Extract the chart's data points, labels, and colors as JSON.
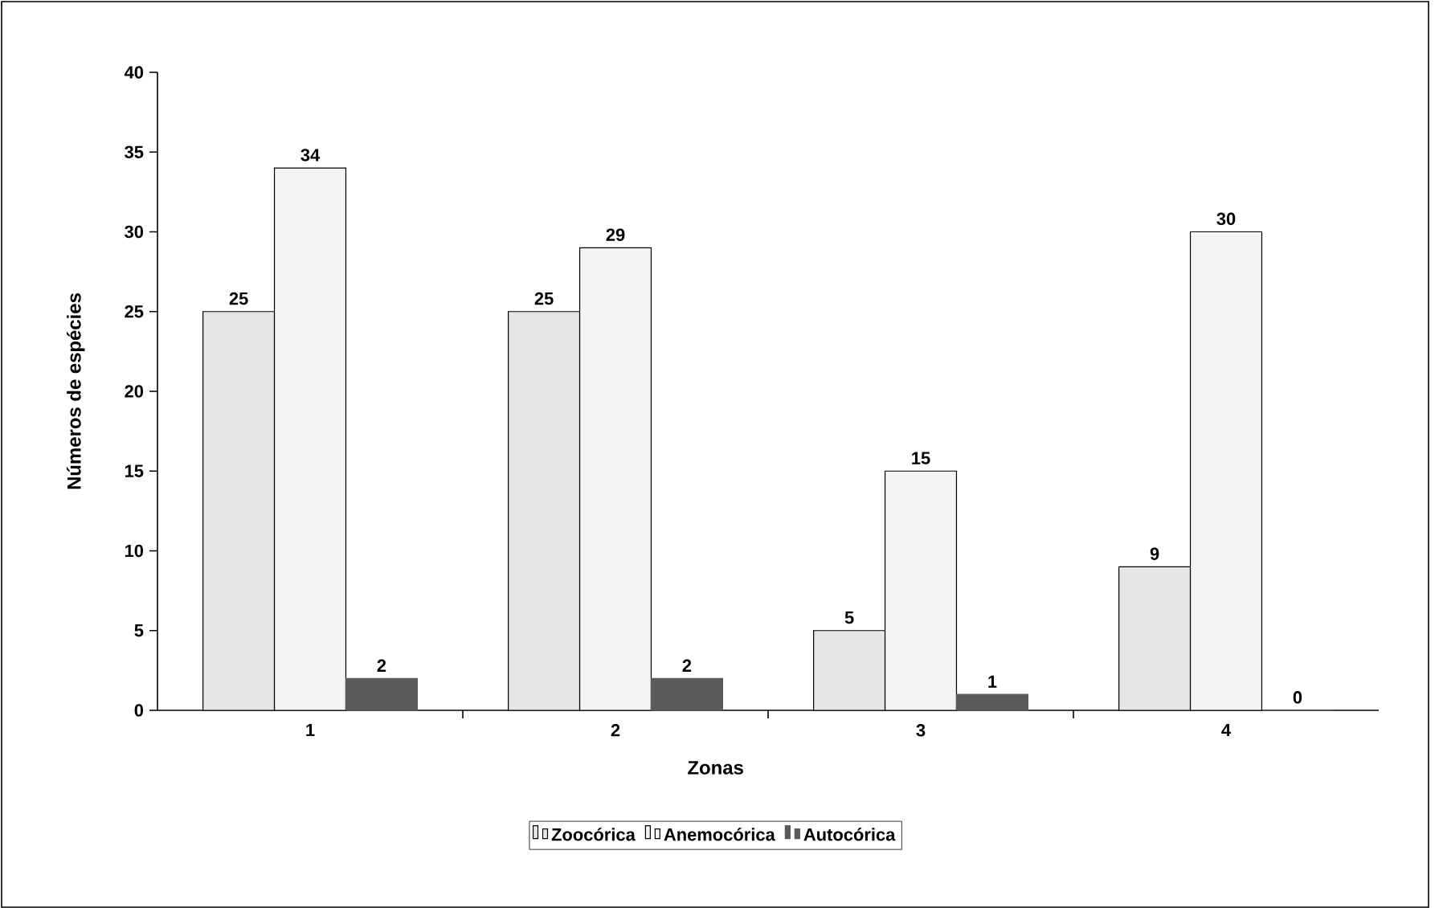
{
  "chart_data": {
    "type": "bar",
    "xlabel": "Zonas",
    "ylabel": "Números de espécies",
    "categories": [
      "1",
      "2",
      "3",
      "4"
    ],
    "series": [
      {
        "name": "Zoocórica",
        "color": "#e6e6e6",
        "values": [
          25,
          25,
          5,
          9
        ]
      },
      {
        "name": "Anemocórica",
        "color": "#f4f4f4",
        "values": [
          34,
          29,
          15,
          30
        ]
      },
      {
        "name": "Autocórica",
        "color": "#5a5a5a",
        "values": [
          2,
          2,
          1,
          0
        ]
      }
    ],
    "ylim": [
      0,
      40
    ],
    "yticks": [
      0,
      5,
      10,
      15,
      20,
      25,
      30,
      35,
      40
    ],
    "data_labels": true,
    "legend": "bottom"
  }
}
